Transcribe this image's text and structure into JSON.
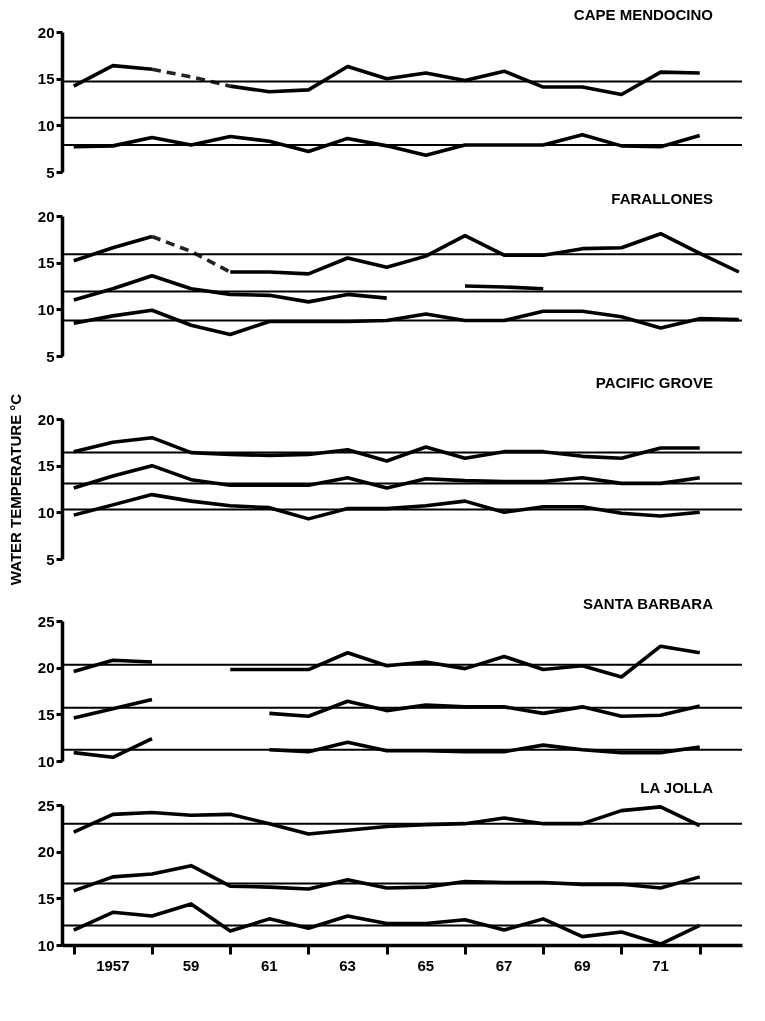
{
  "chart_data": [
    {
      "type": "line",
      "title": "CAPE MENDOCINO",
      "categories": [
        null,
        null,
        null,
        null,
        null,
        null,
        null,
        null,
        null,
        null,
        null,
        null,
        null,
        null,
        null,
        null,
        null,
        null
      ],
      "ylim": [
        5,
        20
      ],
      "yticks": [
        5,
        10,
        15,
        20
      ],
      "tick_labels": "y",
      "series": [
        {
          "color": "#000000",
          "values": [
            14.2,
            16.4,
            16.0,
            null,
            14.2,
            13.6,
            13.8,
            16.3,
            15.0,
            15.6,
            14.8,
            15.8,
            14.1,
            14.1,
            13.3,
            15.7,
            15.6,
            null
          ]
        },
        {
          "color": "#000000",
          "values": [
            7.7,
            7.8,
            8.7,
            7.9,
            8.8,
            8.3,
            7.2,
            8.6,
            7.8,
            6.8,
            7.9,
            7.9,
            7.9,
            9.0,
            7.8,
            7.7,
            8.9,
            null
          ]
        },
        {
          "color": "#222222",
          "values": [
            null,
            null,
            16.0,
            15.2,
            14.2,
            null,
            null,
            null,
            null,
            null,
            null,
            null,
            null,
            null,
            null,
            null,
            null,
            null
          ],
          "line_style": "dashed"
        }
      ],
      "ref_lines": [
        {
          "axis": "y",
          "value": 14.7,
          "color": "#000000"
        },
        {
          "axis": "y",
          "value": 10.8,
          "color": "#000000"
        },
        {
          "axis": "y",
          "value": 7.9,
          "color": "#000000"
        }
      ]
    },
    {
      "type": "line",
      "title": "FARALLONES",
      "categories": [
        null,
        null,
        null,
        null,
        null,
        null,
        null,
        null,
        null,
        null,
        null,
        null,
        null,
        null,
        null,
        null,
        null,
        null
      ],
      "ylim": [
        5,
        20
      ],
      "yticks": [
        5,
        10,
        15,
        20
      ],
      "tick_labels": "y",
      "series": [
        {
          "color": "#000000",
          "values": [
            15.2,
            16.6,
            17.8,
            null,
            14.0,
            14.0,
            13.8,
            15.5,
            14.5,
            15.7,
            17.9,
            15.8,
            15.8,
            16.5,
            16.6,
            18.1,
            16.0,
            14.0
          ]
        },
        {
          "color": "#000000",
          "values": [
            11.0,
            12.2,
            13.6,
            12.2,
            11.6,
            11.5,
            10.8,
            11.6,
            11.2,
            null,
            12.5,
            12.4,
            12.2,
            null,
            null,
            null,
            null,
            null
          ]
        },
        {
          "color": "#000000",
          "values": [
            8.5,
            9.3,
            9.9,
            8.3,
            7.3,
            8.7,
            8.7,
            8.7,
            8.8,
            9.5,
            8.8,
            8.8,
            9.8,
            9.8,
            9.2,
            8.0,
            9.0,
            8.9
          ]
        },
        {
          "color": "#222222",
          "values": [
            null,
            null,
            17.8,
            16.2,
            14.0,
            null,
            null,
            null,
            null,
            null,
            null,
            null,
            null,
            null,
            null,
            null,
            null,
            null
          ],
          "line_style": "dashed"
        }
      ],
      "ref_lines": [
        {
          "axis": "y",
          "value": 15.9,
          "color": "#000000"
        },
        {
          "axis": "y",
          "value": 11.9,
          "color": "#000000"
        },
        {
          "axis": "y",
          "value": 8.8,
          "color": "#000000"
        }
      ]
    },
    {
      "type": "line",
      "title": "PACIFIC GROVE",
      "ylabel": "WATER TEMPERATURE °C",
      "categories": [
        null,
        null,
        null,
        null,
        null,
        null,
        null,
        null,
        null,
        null,
        null,
        null,
        null,
        null,
        null,
        null,
        null,
        null
      ],
      "ylim": [
        5,
        20
      ],
      "yticks": [
        5,
        10,
        15,
        20
      ],
      "tick_labels": "y",
      "series": [
        {
          "color": "#000000",
          "values": [
            16.5,
            17.5,
            18.0,
            16.4,
            16.2,
            16.1,
            16.2,
            16.7,
            15.5,
            17.0,
            15.8,
            16.5,
            16.5,
            16.0,
            15.8,
            16.9,
            16.9,
            null
          ]
        },
        {
          "color": "#000000",
          "values": [
            12.6,
            13.9,
            15.0,
            13.5,
            12.9,
            12.9,
            12.9,
            13.7,
            12.6,
            13.6,
            13.4,
            13.3,
            13.3,
            13.7,
            13.1,
            13.1,
            13.7,
            null
          ]
        },
        {
          "color": "#000000",
          "values": [
            9.7,
            10.8,
            11.9,
            11.2,
            10.7,
            10.5,
            9.3,
            10.4,
            10.4,
            10.7,
            11.2,
            10.0,
            10.6,
            10.6,
            9.9,
            9.6,
            10.0,
            null
          ]
        }
      ],
      "ref_lines": [
        {
          "axis": "y",
          "value": 16.4,
          "color": "#000000"
        },
        {
          "axis": "y",
          "value": 13.1,
          "color": "#000000"
        },
        {
          "axis": "y",
          "value": 10.3,
          "color": "#000000"
        }
      ]
    },
    {
      "type": "line",
      "title": "SANTA BARBARA",
      "categories": [
        null,
        null,
        null,
        null,
        null,
        null,
        null,
        null,
        null,
        null,
        null,
        null,
        null,
        null,
        null,
        null,
        null,
        null
      ],
      "ylim": [
        10,
        25
      ],
      "yticks": [
        10,
        15,
        20,
        25
      ],
      "tick_labels": "y",
      "series": [
        {
          "color": "#000000",
          "values": [
            19.6,
            20.8,
            20.6,
            null,
            19.8,
            19.8,
            19.8,
            21.6,
            20.2,
            20.6,
            19.9,
            21.2,
            19.8,
            20.2,
            19.0,
            22.3,
            21.6,
            null
          ]
        },
        {
          "color": "#000000",
          "values": [
            14.6,
            15.6,
            16.6,
            null,
            null,
            15.1,
            14.8,
            16.4,
            15.4,
            16.0,
            15.8,
            15.8,
            15.1,
            15.8,
            14.8,
            14.9,
            15.9,
            null
          ]
        },
        {
          "color": "#000000",
          "values": [
            10.9,
            10.4,
            12.4,
            null,
            null,
            11.2,
            11.0,
            12.0,
            11.1,
            11.1,
            11.0,
            11.0,
            11.7,
            11.2,
            10.9,
            10.9,
            11.5,
            null
          ]
        }
      ],
      "ref_lines": [
        {
          "axis": "y",
          "value": 20.3,
          "color": "#000000"
        },
        {
          "axis": "y",
          "value": 15.7,
          "color": "#000000"
        },
        {
          "axis": "y",
          "value": 11.2,
          "color": "#000000"
        }
      ]
    },
    {
      "type": "line",
      "title": "LA JOLLA",
      "categories": [
        null,
        "1957",
        null,
        "59",
        null,
        "61",
        null,
        "63",
        null,
        "65",
        null,
        "67",
        null,
        "69",
        null,
        "71",
        null,
        null
      ],
      "ylim": [
        10,
        25
      ],
      "yticks": [
        10,
        15,
        20,
        25
      ],
      "series": [
        {
          "color": "#000000",
          "values": [
            22.1,
            24.0,
            24.2,
            23.9,
            24.0,
            23.0,
            21.9,
            22.3,
            22.7,
            22.9,
            23.0,
            23.6,
            23.0,
            23.0,
            24.4,
            24.8,
            22.8,
            null
          ]
        },
        {
          "color": "#000000",
          "values": [
            15.8,
            17.3,
            17.6,
            18.5,
            16.3,
            16.2,
            16.0,
            17.0,
            16.1,
            16.2,
            16.8,
            16.7,
            16.7,
            16.5,
            16.5,
            16.1,
            17.3,
            null
          ]
        },
        {
          "color": "#000000",
          "values": [
            11.6,
            13.5,
            13.1,
            14.4,
            11.5,
            12.8,
            11.8,
            13.1,
            12.3,
            12.3,
            12.7,
            11.6,
            12.8,
            10.9,
            11.4,
            10.1,
            12.1,
            null
          ]
        }
      ],
      "ref_lines": [
        {
          "axis": "y",
          "value": 23.0,
          "color": "#000000"
        },
        {
          "axis": "y",
          "value": 16.6,
          "color": "#000000"
        },
        {
          "axis": "y",
          "value": 12.1,
          "color": "#000000"
        }
      ]
    }
  ]
}
